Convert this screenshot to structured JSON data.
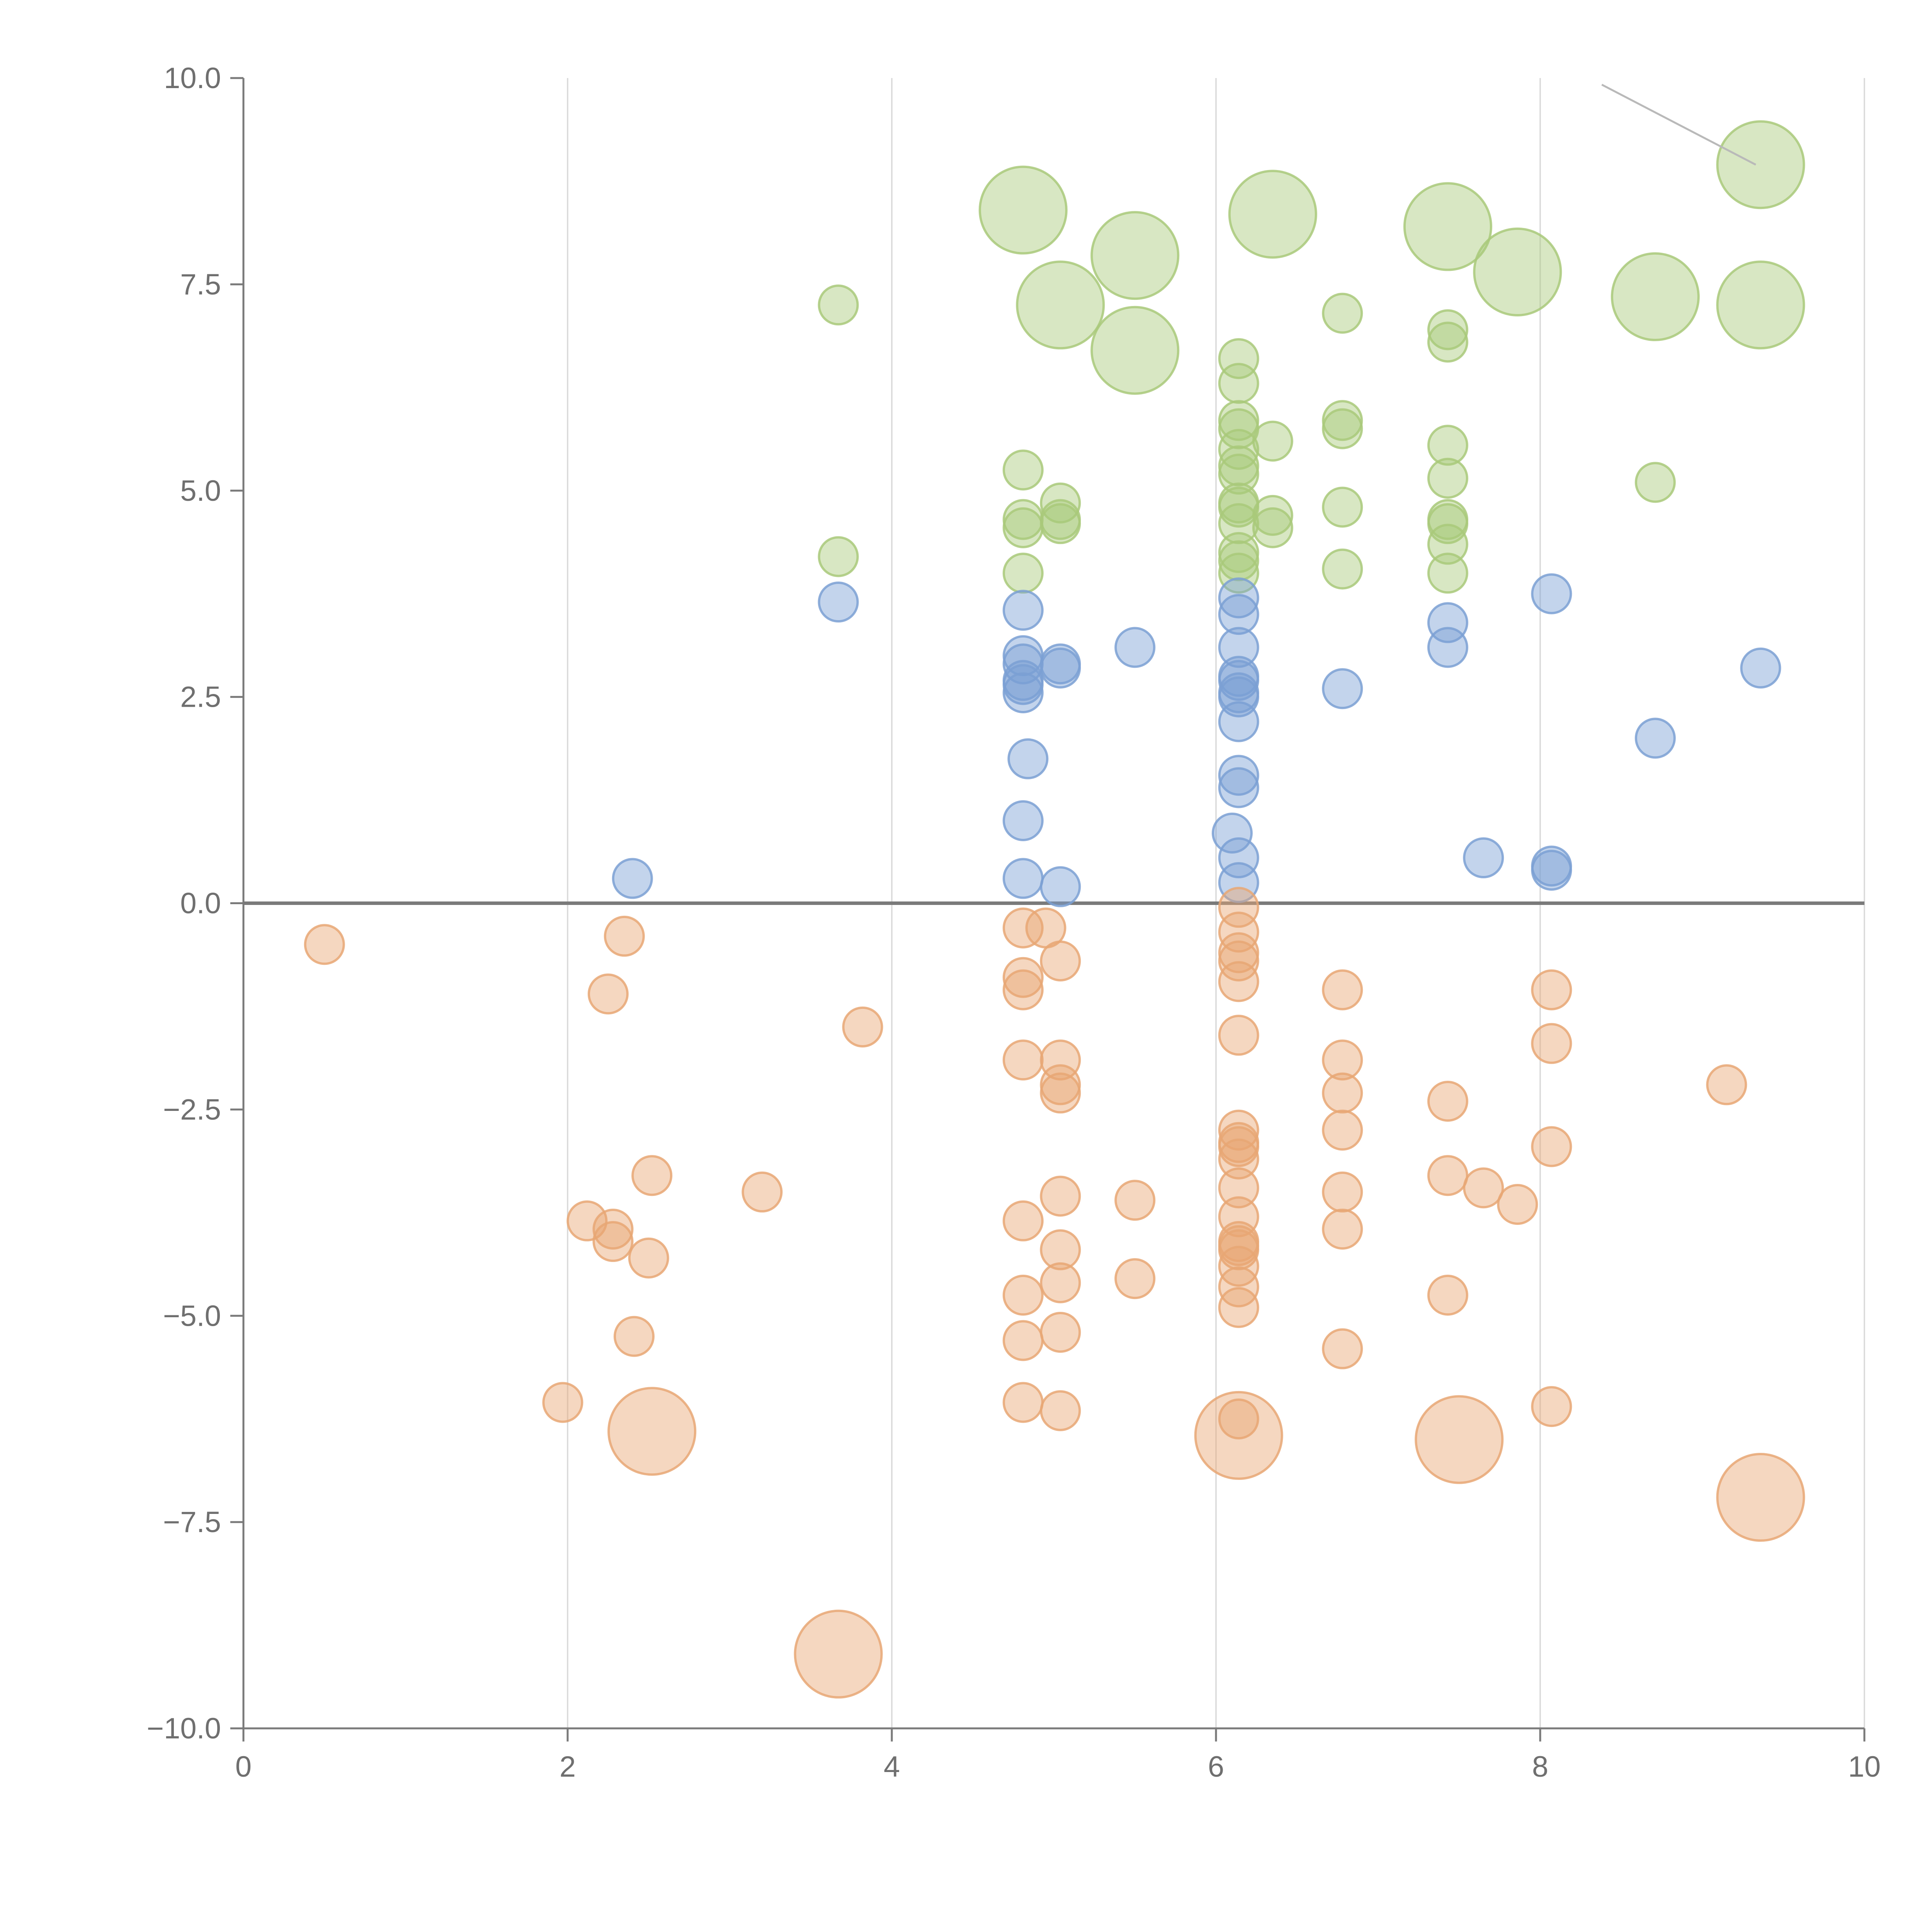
{
  "chart_data": {
    "type": "scatter",
    "title": "",
    "xlabel": "",
    "ylabel": "",
    "xlim": [
      0,
      10
    ],
    "ylim": [
      -10,
      10
    ],
    "x_ticks": [
      "0",
      "2",
      "4",
      "6",
      "8",
      "10"
    ],
    "y_ticks": [
      "10.0",
      "7.5",
      "5.0",
      "2.5",
      "0.0",
      "−2.5",
      "−5.0",
      "−7.5",
      "−10.0"
    ],
    "grid": "vertical",
    "zero_line": true,
    "series": [
      {
        "name": "green",
        "color": "#a9c97a",
        "points": [
          {
            "x": 3.67,
            "y": 7.25,
            "s": 1
          },
          {
            "x": 3.67,
            "y": 4.2,
            "s": 1
          },
          {
            "x": 4.81,
            "y": 8.4,
            "s": 2
          },
          {
            "x": 4.81,
            "y": 5.25,
            "s": 1
          },
          {
            "x": 4.81,
            "y": 4.65,
            "s": 1
          },
          {
            "x": 4.81,
            "y": 4.55,
            "s": 1
          },
          {
            "x": 4.81,
            "y": 4.0,
            "s": 1
          },
          {
            "x": 5.04,
            "y": 7.25,
            "s": 2
          },
          {
            "x": 5.04,
            "y": 4.85,
            "s": 1
          },
          {
            "x": 5.04,
            "y": 4.65,
            "s": 1
          },
          {
            "x": 5.04,
            "y": 4.6,
            "s": 1
          },
          {
            "x": 5.5,
            "y": 7.85,
            "s": 2
          },
          {
            "x": 5.5,
            "y": 6.7,
            "s": 2
          },
          {
            "x": 6.35,
            "y": 8.35,
            "s": 2
          },
          {
            "x": 6.35,
            "y": 5.6,
            "s": 1
          },
          {
            "x": 6.35,
            "y": 4.7,
            "s": 1
          },
          {
            "x": 6.35,
            "y": 4.55,
            "s": 1
          },
          {
            "x": 6.14,
            "y": 6.6,
            "s": 1
          },
          {
            "x": 6.14,
            "y": 6.3,
            "s": 1
          },
          {
            "x": 6.14,
            "y": 5.85,
            "s": 1
          },
          {
            "x": 6.14,
            "y": 5.75,
            "s": 1
          },
          {
            "x": 6.14,
            "y": 5.5,
            "s": 1
          },
          {
            "x": 6.14,
            "y": 5.3,
            "s": 1
          },
          {
            "x": 6.14,
            "y": 5.2,
            "s": 1
          },
          {
            "x": 6.14,
            "y": 4.85,
            "s": 1
          },
          {
            "x": 6.14,
            "y": 4.8,
            "s": 1
          },
          {
            "x": 6.14,
            "y": 4.6,
            "s": 1
          },
          {
            "x": 6.14,
            "y": 4.25,
            "s": 1
          },
          {
            "x": 6.14,
            "y": 4.15,
            "s": 1
          },
          {
            "x": 6.14,
            "y": 4.0,
            "s": 1
          },
          {
            "x": 6.78,
            "y": 7.15,
            "s": 1
          },
          {
            "x": 6.78,
            "y": 5.85,
            "s": 1
          },
          {
            "x": 6.78,
            "y": 5.75,
            "s": 1
          },
          {
            "x": 6.78,
            "y": 4.8,
            "s": 1
          },
          {
            "x": 6.78,
            "y": 4.05,
            "s": 1
          },
          {
            "x": 7.43,
            "y": 8.2,
            "s": 2
          },
          {
            "x": 7.43,
            "y": 6.95,
            "s": 1
          },
          {
            "x": 7.43,
            "y": 6.8,
            "s": 1
          },
          {
            "x": 7.43,
            "y": 5.55,
            "s": 1
          },
          {
            "x": 7.43,
            "y": 5.15,
            "s": 1
          },
          {
            "x": 7.43,
            "y": 4.65,
            "s": 1
          },
          {
            "x": 7.43,
            "y": 4.6,
            "s": 1
          },
          {
            "x": 7.43,
            "y": 4.35,
            "s": 1
          },
          {
            "x": 7.43,
            "y": 4.0,
            "s": 1
          },
          {
            "x": 7.86,
            "y": 7.65,
            "s": 2
          },
          {
            "x": 8.71,
            "y": 7.35,
            "s": 2
          },
          {
            "x": 8.71,
            "y": 5.1,
            "s": 1
          },
          {
            "x": 9.36,
            "y": 8.95,
            "s": 2
          },
          {
            "x": 9.36,
            "y": 7.25,
            "s": 2
          }
        ]
      },
      {
        "name": "blue",
        "color": "#7ba0d4",
        "points": [
          {
            "x": 2.4,
            "y": 0.3,
            "s": 1
          },
          {
            "x": 3.67,
            "y": 3.65,
            "s": 1
          },
          {
            "x": 4.81,
            "y": 3.55,
            "s": 1
          },
          {
            "x": 4.81,
            "y": 3.0,
            "s": 1
          },
          {
            "x": 4.81,
            "y": 2.9,
            "s": 1
          },
          {
            "x": 4.81,
            "y": 2.7,
            "s": 1
          },
          {
            "x": 4.81,
            "y": 2.65,
            "s": 1
          },
          {
            "x": 4.81,
            "y": 2.55,
            "s": 1
          },
          {
            "x": 4.81,
            "y": 1.0,
            "s": 1
          },
          {
            "x": 4.81,
            "y": 0.3,
            "s": 1
          },
          {
            "x": 4.84,
            "y": 1.75,
            "s": 1
          },
          {
            "x": 5.04,
            "y": 2.9,
            "s": 1
          },
          {
            "x": 5.04,
            "y": 2.85,
            "s": 1
          },
          {
            "x": 5.04,
            "y": 0.2,
            "s": 1
          },
          {
            "x": 5.5,
            "y": 3.1,
            "s": 1
          },
          {
            "x": 6.14,
            "y": 3.7,
            "s": 1
          },
          {
            "x": 6.14,
            "y": 3.5,
            "s": 1
          },
          {
            "x": 6.14,
            "y": 3.1,
            "s": 1
          },
          {
            "x": 6.14,
            "y": 2.75,
            "s": 1
          },
          {
            "x": 6.14,
            "y": 2.7,
            "s": 1
          },
          {
            "x": 6.14,
            "y": 2.55,
            "s": 1
          },
          {
            "x": 6.14,
            "y": 2.5,
            "s": 1
          },
          {
            "x": 6.14,
            "y": 2.2,
            "s": 1
          },
          {
            "x": 6.14,
            "y": 1.55,
            "s": 1
          },
          {
            "x": 6.14,
            "y": 1.4,
            "s": 1
          },
          {
            "x": 6.14,
            "y": 0.55,
            "s": 1
          },
          {
            "x": 6.14,
            "y": 0.25,
            "s": 1
          },
          {
            "x": 6.1,
            "y": 0.85,
            "s": 1
          },
          {
            "x": 6.78,
            "y": 2.6,
            "s": 1
          },
          {
            "x": 7.43,
            "y": 3.4,
            "s": 1
          },
          {
            "x": 7.43,
            "y": 3.1,
            "s": 1
          },
          {
            "x": 7.65,
            "y": 0.55,
            "s": 1
          },
          {
            "x": 8.07,
            "y": 3.75,
            "s": 1
          },
          {
            "x": 8.07,
            "y": 0.45,
            "s": 1
          },
          {
            "x": 8.07,
            "y": 0.4,
            "s": 1
          },
          {
            "x": 8.71,
            "y": 2.0,
            "s": 1
          },
          {
            "x": 9.36,
            "y": 2.85,
            "s": 1
          }
        ]
      },
      {
        "name": "orange",
        "color": "#e8a774",
        "points": [
          {
            "x": 0.5,
            "y": -0.5,
            "s": 1
          },
          {
            "x": 1.97,
            "y": -6.05,
            "s": 1
          },
          {
            "x": 2.12,
            "y": -3.85,
            "s": 1
          },
          {
            "x": 2.25,
            "y": -1.1,
            "s": 1
          },
          {
            "x": 2.28,
            "y": -3.95,
            "s": 1
          },
          {
            "x": 2.28,
            "y": -4.1,
            "s": 1
          },
          {
            "x": 2.35,
            "y": -0.4,
            "s": 1
          },
          {
            "x": 2.41,
            "y": -5.25,
            "s": 1
          },
          {
            "x": 2.5,
            "y": -4.3,
            "s": 1
          },
          {
            "x": 2.52,
            "y": -3.3,
            "s": 1
          },
          {
            "x": 2.52,
            "y": -6.4,
            "s": 2
          },
          {
            "x": 3.2,
            "y": -3.5,
            "s": 1
          },
          {
            "x": 3.67,
            "y": -9.1,
            "s": 2
          },
          {
            "x": 3.82,
            "y": -1.5,
            "s": 1
          },
          {
            "x": 4.81,
            "y": -0.3,
            "s": 1
          },
          {
            "x": 4.81,
            "y": -0.9,
            "s": 1
          },
          {
            "x": 4.81,
            "y": -1.05,
            "s": 1
          },
          {
            "x": 4.81,
            "y": -1.9,
            "s": 1
          },
          {
            "x": 4.81,
            "y": -3.85,
            "s": 1
          },
          {
            "x": 4.81,
            "y": -4.75,
            "s": 1
          },
          {
            "x": 4.81,
            "y": -5.3,
            "s": 1
          },
          {
            "x": 4.81,
            "y": -6.05,
            "s": 1
          },
          {
            "x": 4.95,
            "y": -0.3,
            "s": 1
          },
          {
            "x": 5.04,
            "y": -0.7,
            "s": 1
          },
          {
            "x": 5.04,
            "y": -1.9,
            "s": 1
          },
          {
            "x": 5.04,
            "y": -2.2,
            "s": 1
          },
          {
            "x": 5.04,
            "y": -2.3,
            "s": 1
          },
          {
            "x": 5.04,
            "y": -3.55,
            "s": 1
          },
          {
            "x": 5.04,
            "y": -4.2,
            "s": 1
          },
          {
            "x": 5.04,
            "y": -4.6,
            "s": 1
          },
          {
            "x": 5.04,
            "y": -5.2,
            "s": 1
          },
          {
            "x": 5.04,
            "y": -6.15,
            "s": 1
          },
          {
            "x": 5.5,
            "y": -3.6,
            "s": 1
          },
          {
            "x": 5.5,
            "y": -4.55,
            "s": 1
          },
          {
            "x": 6.14,
            "y": -0.05,
            "s": 1
          },
          {
            "x": 6.14,
            "y": -0.35,
            "s": 1
          },
          {
            "x": 6.14,
            "y": -0.6,
            "s": 1
          },
          {
            "x": 6.14,
            "y": -0.7,
            "s": 1
          },
          {
            "x": 6.14,
            "y": -0.95,
            "s": 1
          },
          {
            "x": 6.14,
            "y": -1.6,
            "s": 1
          },
          {
            "x": 6.14,
            "y": -2.75,
            "s": 1
          },
          {
            "x": 6.14,
            "y": -2.9,
            "s": 1
          },
          {
            "x": 6.14,
            "y": -2.95,
            "s": 1
          },
          {
            "x": 6.14,
            "y": -3.1,
            "s": 1
          },
          {
            "x": 6.14,
            "y": -3.45,
            "s": 1
          },
          {
            "x": 6.14,
            "y": -3.8,
            "s": 1
          },
          {
            "x": 6.14,
            "y": -4.1,
            "s": 1
          },
          {
            "x": 6.14,
            "y": -4.15,
            "s": 1
          },
          {
            "x": 6.14,
            "y": -4.2,
            "s": 1
          },
          {
            "x": 6.14,
            "y": -4.4,
            "s": 1
          },
          {
            "x": 6.14,
            "y": -4.65,
            "s": 1
          },
          {
            "x": 6.14,
            "y": -4.9,
            "s": 1
          },
          {
            "x": 6.14,
            "y": -6.25,
            "s": 1
          },
          {
            "x": 6.14,
            "y": -6.45,
            "s": 2
          },
          {
            "x": 6.78,
            "y": -1.05,
            "s": 1
          },
          {
            "x": 6.78,
            "y": -1.9,
            "s": 1
          },
          {
            "x": 6.78,
            "y": -2.3,
            "s": 1
          },
          {
            "x": 6.78,
            "y": -2.75,
            "s": 1
          },
          {
            "x": 6.78,
            "y": -3.5,
            "s": 1
          },
          {
            "x": 6.78,
            "y": -3.95,
            "s": 1
          },
          {
            "x": 6.78,
            "y": -5.4,
            "s": 1
          },
          {
            "x": 7.43,
            "y": -2.4,
            "s": 1
          },
          {
            "x": 7.43,
            "y": -3.3,
            "s": 1
          },
          {
            "x": 7.43,
            "y": -4.75,
            "s": 1
          },
          {
            "x": 7.5,
            "y": -6.5,
            "s": 2
          },
          {
            "x": 7.65,
            "y": -3.45,
            "s": 1
          },
          {
            "x": 7.86,
            "y": -3.65,
            "s": 1
          },
          {
            "x": 8.07,
            "y": -1.05,
            "s": 1
          },
          {
            "x": 8.07,
            "y": -1.7,
            "s": 1
          },
          {
            "x": 8.07,
            "y": -2.95,
            "s": 1
          },
          {
            "x": 8.07,
            "y": -6.1,
            "s": 1
          },
          {
            "x": 9.15,
            "y": -2.2,
            "s": 1
          },
          {
            "x": 9.36,
            "y": -7.2,
            "s": 2
          }
        ]
      }
    ],
    "annotations": [
      {
        "x1": 8.38,
        "y1": 9.92,
        "x2": 9.33,
        "y2": 8.95,
        "color": "#b9b9b9"
      }
    ]
  }
}
